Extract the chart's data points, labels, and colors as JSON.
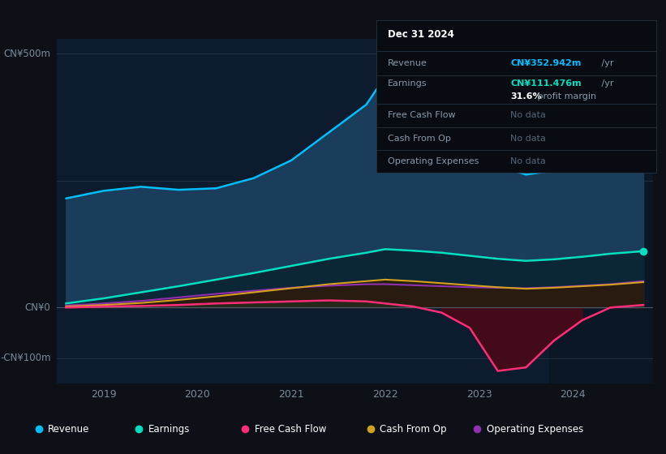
{
  "bg_color": "#0d1117",
  "plot_bg": "#0d1b2e",
  "title": "Dec 31 2024",
  "ylabel_top": "CN¥500m",
  "ylabel_zero": "CN¥0",
  "ylabel_neg": "-CN¥100m",
  "x_labels": [
    "2019",
    "2020",
    "2021",
    "2022",
    "2023",
    "2024"
  ],
  "revenue_color": "#00bfff",
  "earnings_color": "#00e0c0",
  "fcf_color": "#ff2d78",
  "cashfromop_color": "#d4a020",
  "opex_color": "#9030b0",
  "revenue_fill": "#1a3d5c",
  "earnings_fill": "#0a2535",
  "info_box": {
    "title": "Dec 31 2024",
    "revenue_label": "Revenue",
    "revenue_value": "CN¥352.942m",
    "revenue_unit": " /yr",
    "earnings_label": "Earnings",
    "earnings_value": "CN¥111.476m",
    "earnings_unit": " /yr",
    "margin_value": "31.6%",
    "margin_text": " profit margin",
    "fcf_label": "Free Cash Flow",
    "cashop_label": "Cash From Op",
    "opex_label": "Operating Expenses",
    "no_data": "No data"
  },
  "legend": [
    {
      "label": "Revenue",
      "color": "#00bfff"
    },
    {
      "label": "Earnings",
      "color": "#00e0c0"
    },
    {
      "label": "Free Cash Flow",
      "color": "#ff2d78"
    },
    {
      "label": "Cash From Op",
      "color": "#d4a020"
    },
    {
      "label": "Operating Expenses",
      "color": "#9030b0"
    }
  ],
  "x_data": [
    2018.6,
    2019.0,
    2019.4,
    2019.8,
    2020.2,
    2020.6,
    2021.0,
    2021.4,
    2021.8,
    2022.0,
    2022.3,
    2022.6,
    2022.9,
    2023.2,
    2023.5,
    2023.8,
    2024.1,
    2024.4,
    2024.75
  ],
  "revenue": [
    215,
    230,
    238,
    232,
    235,
    255,
    290,
    345,
    400,
    455,
    440,
    415,
    340,
    280,
    262,
    270,
    295,
    325,
    353
  ],
  "earnings": [
    8,
    18,
    30,
    42,
    55,
    68,
    82,
    96,
    108,
    115,
    112,
    108,
    102,
    96,
    92,
    95,
    100,
    106,
    111
  ],
  "fcf": [
    0,
    2,
    3,
    5,
    8,
    10,
    12,
    14,
    12,
    8,
    2,
    -10,
    -40,
    -125,
    -118,
    -65,
    -25,
    0,
    5
  ],
  "cashfromop": [
    2,
    5,
    9,
    15,
    22,
    30,
    38,
    46,
    52,
    55,
    52,
    48,
    44,
    40,
    37,
    39,
    42,
    45,
    50
  ],
  "opex": [
    4,
    8,
    13,
    20,
    27,
    33,
    39,
    43,
    46,
    46,
    44,
    42,
    40,
    39,
    38,
    40,
    43,
    46,
    52
  ],
  "shaded_start": 2023.75,
  "shaded_end": 2024.85,
  "ymin": -150,
  "ymax": 530,
  "xlim_left": 2018.5,
  "xlim_right": 2024.85
}
